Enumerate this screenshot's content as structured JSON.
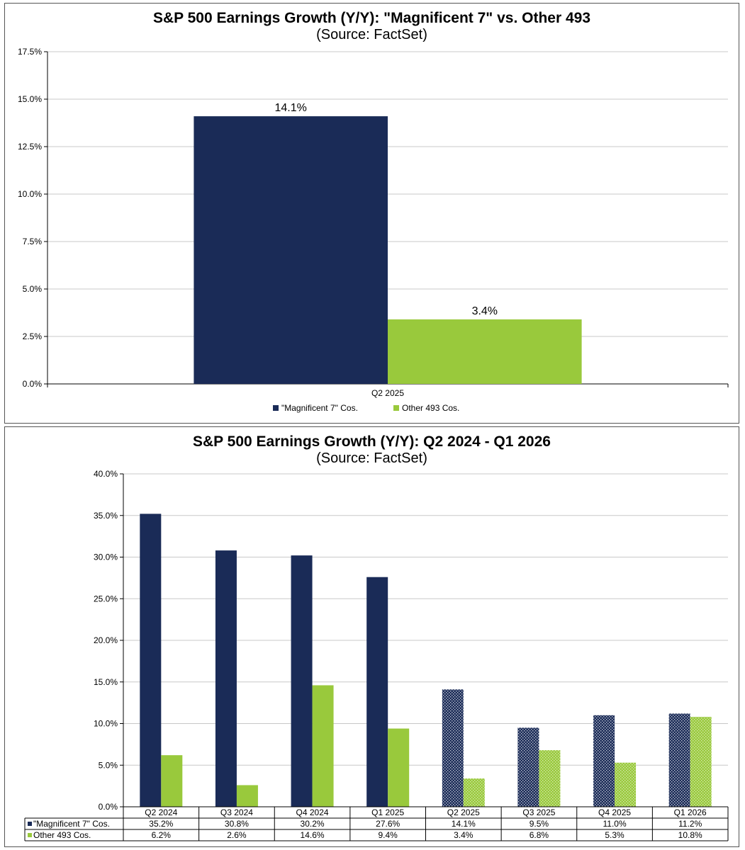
{
  "colors": {
    "mag7": "#1a2b57",
    "other": "#99c93c",
    "grid": "#c8c8c8",
    "axis": "#000000"
  },
  "chart_data": [
    {
      "type": "bar",
      "title": "S&P 500 Earnings Growth (Y/Y): \"Magnificent 7\" vs. Other 493",
      "subtitle": "(Source: FactSet)",
      "categories": [
        "Q2 2025"
      ],
      "series": [
        {
          "name": "\"Magnificent 7\" Cos.",
          "values": [
            14.1
          ],
          "labels": [
            "14.1%"
          ]
        },
        {
          "name": "Other 493 Cos.",
          "values": [
            3.4
          ],
          "labels": [
            "3.4%"
          ]
        }
      ],
      "ylim": [
        0,
        17.5
      ],
      "yticks": [
        "0.0%",
        "2.5%",
        "5.0%",
        "7.5%",
        "10.0%",
        "12.5%",
        "15.0%",
        "17.5%"
      ],
      "grid": true,
      "legend": "bottom"
    },
    {
      "type": "bar",
      "title": "S&P 500 Earnings Growth (Y/Y): Q2 2024 - Q1 2026",
      "subtitle": "(Source: FactSet)",
      "categories": [
        "Q2 2024",
        "Q3 2024",
        "Q4 2024",
        "Q1 2025",
        "Q2 2025",
        "Q3 2025",
        "Q4 2025",
        "Q1 2026"
      ],
      "series": [
        {
          "name": "\"Magnificent 7\" Cos.",
          "values": [
            35.2,
            30.8,
            30.2,
            27.6,
            14.1,
            9.5,
            11.0,
            11.2
          ],
          "labels": [
            "35.2%",
            "30.8%",
            "30.2%",
            "27.6%",
            "14.1%",
            "9.5%",
            "11.0%",
            "11.2%"
          ]
        },
        {
          "name": "Other 493 Cos.",
          "values": [
            6.2,
            2.6,
            14.6,
            9.4,
            3.4,
            6.8,
            5.3,
            10.8
          ],
          "labels": [
            "6.2%",
            "2.6%",
            "14.6%",
            "9.4%",
            "3.4%",
            "6.8%",
            "5.3%",
            "10.8%"
          ]
        }
      ],
      "estimate_from_index": 4,
      "ylim": [
        0,
        40
      ],
      "yticks": [
        "0.0%",
        "5.0%",
        "10.0%",
        "15.0%",
        "20.0%",
        "25.0%",
        "30.0%",
        "35.0%",
        "40.0%"
      ],
      "grid": true,
      "legend": "data-table"
    }
  ]
}
